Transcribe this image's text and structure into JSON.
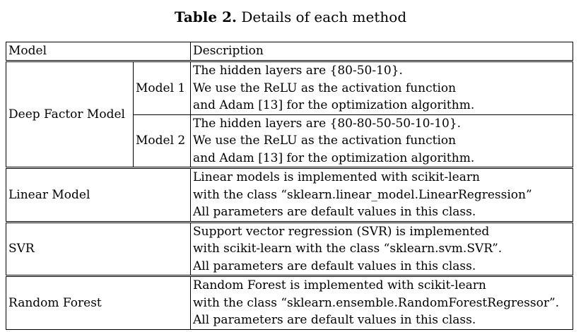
{
  "caption": {
    "label": "Table 2.",
    "text": "Details of each method"
  },
  "headers": {
    "model": "Model",
    "description": "Description"
  },
  "deep_factor": {
    "name": "Deep Factor Model",
    "submodels": [
      {
        "name": "Model 1",
        "lines": [
          "The hidden layers are {80-50-10}.",
          "We use the ReLU as the activation function",
          "and Adam [13] for the optimization algorithm."
        ]
      },
      {
        "name": "Model 2",
        "lines": [
          "The hidden layers are {80-80-50-50-10-10}.",
          "We use the ReLU as the activation function",
          "and Adam [13] for the optimization algorithm."
        ]
      }
    ]
  },
  "rows": [
    {
      "name": "Linear Model",
      "lines": [
        "Linear models is implemented with scikit-learn",
        "with the class “sklearn.linear_model.LinearRegression”",
        "All parameters are default values in this class."
      ]
    },
    {
      "name": "SVR",
      "lines": [
        "Support vector regression (SVR) is implemented",
        "with scikit-learn with the class “sklearn.svm.SVR”.",
        "All parameters are default values in this class."
      ]
    },
    {
      "name": "Random Forest",
      "lines": [
        "Random Forest is implemented with scikit-learn",
        "with the class “sklearn.ensemble.RandomForestRegressor”.",
        "All parameters are default values in this class."
      ]
    }
  ]
}
